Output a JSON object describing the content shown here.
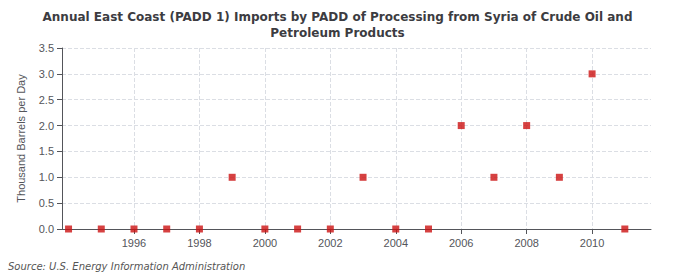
{
  "chart_data": {
    "type": "scatter",
    "title": "Annual East Coast (PADD 1) Imports by PADD of Processing from Syria of Crude Oil and\nPetroleum Products",
    "ylabel": "Thousand Barrels per Day",
    "annotation": "Source: U.S. Energy Information Administration",
    "x": [
      1994,
      1995,
      1996,
      1997,
      1998,
      1999,
      2000,
      2001,
      2002,
      2003,
      2004,
      2005,
      2006,
      2007,
      2008,
      2009,
      2010,
      2011
    ],
    "values": [
      0.0,
      0.0,
      0.0,
      0.0,
      0.0,
      1.0,
      0.0,
      0.0,
      0.0,
      1.0,
      0.0,
      0.0,
      2.0,
      1.0,
      2.0,
      1.0,
      3.0,
      0.0
    ],
    "color": "#cc1111",
    "marker": "square",
    "xlim": [
      1993.8,
      2011.8
    ],
    "xticks": [
      1996,
      1998,
      2000,
      2002,
      2004,
      2006,
      2008,
      2010
    ],
    "ylim": [
      0.0,
      3.5
    ],
    "yticks": [
      {
        "value": 0,
        "label": "0.0"
      },
      0.5,
      {
        "value": 1,
        "label": "1.0"
      },
      1.5,
      {
        "value": 2,
        "label": "2.0"
      },
      2.5,
      {
        "value": 3,
        "label": "3.0"
      },
      3.5
    ],
    "grid": true
  }
}
